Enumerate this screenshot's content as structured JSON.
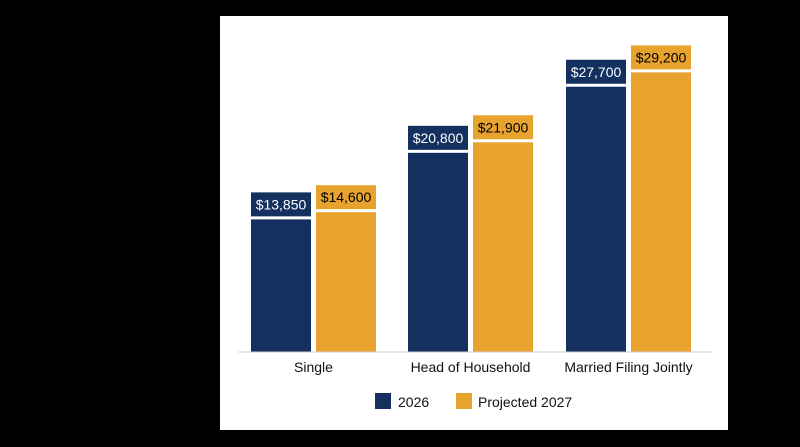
{
  "chart_data": {
    "type": "bar",
    "title": "",
    "xlabel": "",
    "ylabel": "",
    "categories": [
      "Single",
      "Head of Household",
      "Married Filing Jointly"
    ],
    "series": [
      {
        "name": "2026",
        "values": [
          13850,
          20800,
          27700
        ],
        "labels": [
          "$13,850",
          "$20,800",
          "$27,700"
        ],
        "color": "#14305e"
      },
      {
        "name": "Projected 2027",
        "values": [
          14600,
          21900,
          29200
        ],
        "labels": [
          "$14,600",
          "$21,900",
          "$29,200"
        ],
        "color": "#e8a22e"
      }
    ],
    "ylim": [
      0,
      33000
    ],
    "grid": false,
    "legend": "bottom",
    "baseline_color": "#cccccc"
  }
}
